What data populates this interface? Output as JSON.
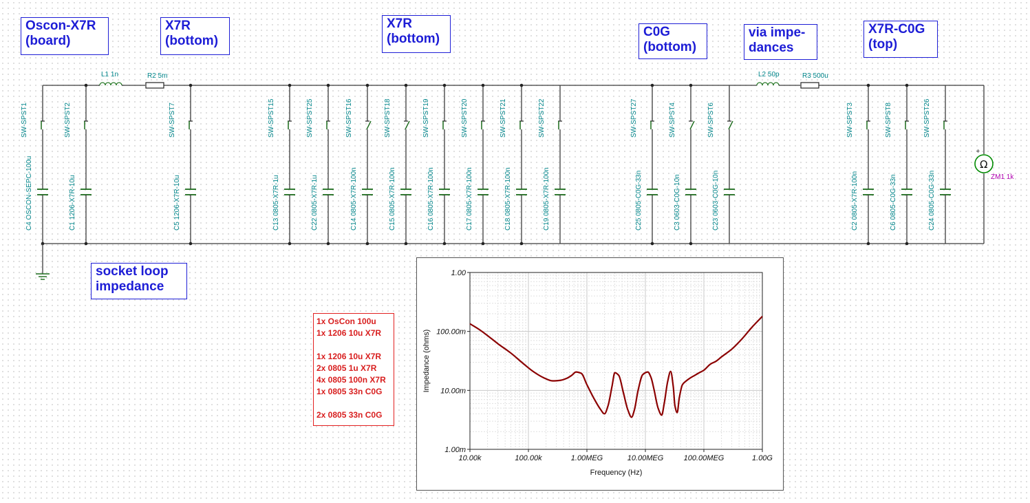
{
  "groups": [
    {
      "label": "Oscon-X7R\n(board)"
    },
    {
      "label": "X7R\n(bottom)"
    },
    {
      "label": "X7R\n(bottom)"
    },
    {
      "label": "C0G\n(bottom)"
    },
    {
      "label": "via impe-\ndances"
    },
    {
      "label": "X7R-C0G\n(top)"
    },
    {
      "label": "socket loop\nimpedance"
    }
  ],
  "series_elements": [
    {
      "label": "L1 1n",
      "type": "inductor"
    },
    {
      "label": "R2 5m",
      "type": "resistor"
    },
    {
      "label": "L2 50p",
      "type": "inductor"
    },
    {
      "label": "R3 500u",
      "type": "resistor"
    }
  ],
  "branches": [
    {
      "switch": "SW-SPST1",
      "cap": "C4 OSCON-SEPC-100u",
      "closed": true
    },
    {
      "switch": "SW-SPST2",
      "cap": "C1 1206-X7R-10u",
      "closed": true
    },
    {
      "switch": "SW-SPST7",
      "cap": "C5 1206-X7R-10u",
      "closed": true
    },
    {
      "switch": "SW-SPST15",
      "cap": "C13 0805-X7R-1u",
      "closed": true
    },
    {
      "switch": "SW-SPST25",
      "cap": "C22 0805-X7R-1u",
      "closed": true
    },
    {
      "switch": "SW-SPST16",
      "cap": "C14 0805-X7R-100n",
      "closed": false
    },
    {
      "switch": "SW-SPST18",
      "cap": "C15 0805-X7R-100n",
      "closed": false
    },
    {
      "switch": "SW-SPST19",
      "cap": "C16 0805-X7R-100n",
      "closed": true
    },
    {
      "switch": "SW-SPST20",
      "cap": "C17 0805-X7R-100n",
      "closed": true
    },
    {
      "switch": "SW-SPST21",
      "cap": "C18 0805-X7R-100n",
      "closed": true
    },
    {
      "switch": "SW-SPST22",
      "cap": "C19 0805-X7R-100n",
      "closed": true
    },
    {
      "switch": "SW-SPST27",
      "cap": "C25 0805-C0G-33n",
      "closed": true
    },
    {
      "switch": "SW-SPST4",
      "cap": "C3 0603-C0G-10n",
      "closed": false
    },
    {
      "switch": "SW-SPST6",
      "cap": "C23 0603-C0G-10n",
      "closed": false
    },
    {
      "switch": "SW-SPST3",
      "cap": "C2 0805-X7R-100n",
      "closed": true
    },
    {
      "switch": "SW-SPST8",
      "cap": "C6 0805-C0G-33n",
      "closed": true
    },
    {
      "switch": "SW-SPST26",
      "cap": "C24 0805-C0G-33n",
      "closed": true
    }
  ],
  "meter": {
    "label": "ZM1 1k",
    "symbol": "Ω",
    "icon": "impedance-meter-icon"
  },
  "summary_lines": [
    "1x OsCon 100u",
    "1x 1206 10u X7R",
    "",
    "1x 1206 10u X7R",
    "2x 0805 1u X7R",
    "4x 0805 100n X7R",
    "1x 0805 33n C0G",
    "",
    "2x 0805 33n C0G"
  ],
  "colors": {
    "wire": "#3a3a3a",
    "component_label": "#00858a",
    "group_label": "#1d1dd6",
    "summary": "#d81e1e",
    "curve": "#8b0000",
    "meter": "#008a00",
    "meter_label": "#b000b0"
  },
  "chart_data": {
    "type": "line",
    "xlabel": "Frequency (Hz)",
    "ylabel": "Impedance (ohms)",
    "x_scale": "log",
    "y_scale": "log",
    "xlim": [
      10000,
      1000000000
    ],
    "ylim": [
      0.001,
      1.0
    ],
    "x_ticks": [
      {
        "value": 10000,
        "label": "10.00k"
      },
      {
        "value": 100000,
        "label": "100.00k"
      },
      {
        "value": 1000000,
        "label": "1.00MEG"
      },
      {
        "value": 10000000,
        "label": "10.00MEG"
      },
      {
        "value": 100000000,
        "label": "100.00MEG"
      },
      {
        "value": 1000000000,
        "label": "1.00G"
      }
    ],
    "y_ticks": [
      {
        "value": 0.001,
        "label": "1.00m"
      },
      {
        "value": 0.01,
        "label": "10.00m"
      },
      {
        "value": 0.1,
        "label": "100.00m"
      },
      {
        "value": 1.0,
        "label": "1.00"
      }
    ],
    "grid": true,
    "series": [
      {
        "x": [
          10000,
          15000,
          20000,
          30000,
          50000,
          80000,
          120000,
          180000,
          260000,
          350000,
          450000,
          550000,
          650000,
          800000,
          1000000,
          1300000,
          1700000,
          2000000,
          2300000,
          2700000,
          3000000,
          3500000,
          4200000,
          5000000,
          5800000,
          6500000,
          7500000,
          9000000,
          11000000,
          12500000,
          14000000,
          16500000,
          19000000,
          21000000,
          24000000,
          27000000,
          30000000,
          32000000,
          35000000,
          38000000,
          43000000,
          50000000,
          60000000,
          70000000,
          80000000,
          100000000,
          130000000,
          160000000,
          200000000,
          300000000,
          450000000,
          650000000,
          1000000000
        ],
        "y": [
          0.135,
          0.105,
          0.085,
          0.062,
          0.043,
          0.029,
          0.021,
          0.0165,
          0.0145,
          0.0148,
          0.016,
          0.018,
          0.0205,
          0.0195,
          0.0125,
          0.0075,
          0.0048,
          0.004,
          0.0055,
          0.012,
          0.02,
          0.018,
          0.0092,
          0.0047,
          0.0035,
          0.0047,
          0.01,
          0.0185,
          0.0205,
          0.0165,
          0.0105,
          0.005,
          0.0038,
          0.006,
          0.014,
          0.021,
          0.0115,
          0.0055,
          0.0042,
          0.0075,
          0.0125,
          0.0145,
          0.0165,
          0.018,
          0.0195,
          0.022,
          0.028,
          0.031,
          0.037,
          0.05,
          0.075,
          0.115,
          0.18
        ]
      }
    ]
  }
}
